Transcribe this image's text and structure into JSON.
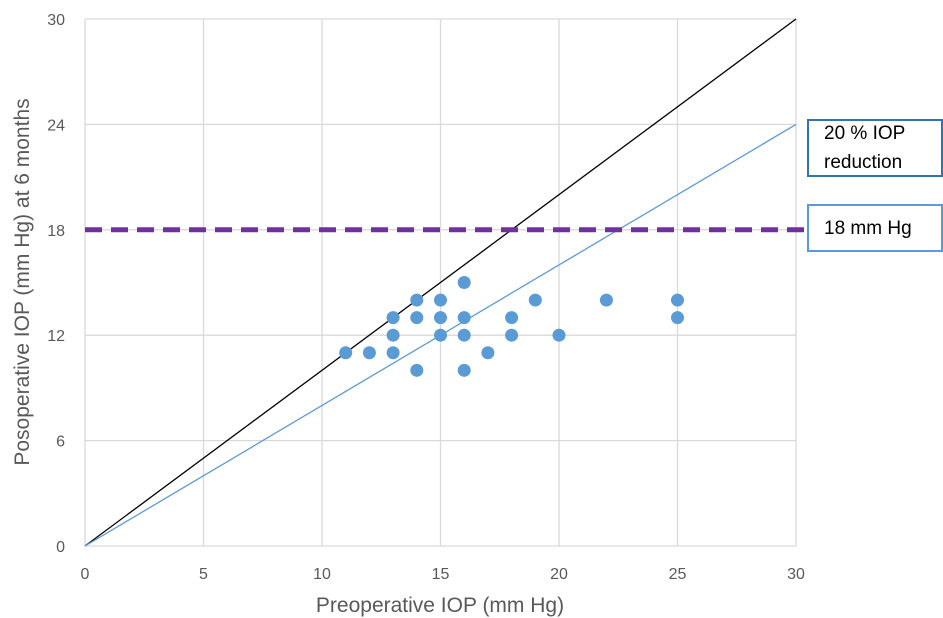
{
  "chart_data": {
    "type": "scatter",
    "xlabel": "Preoperative IOP (mm Hg)",
    "ylabel": "Posoperative IOP (mm Hg) at 6 months",
    "xlim": [
      0,
      30
    ],
    "ylim": [
      0,
      30
    ],
    "x_ticks": [
      "0",
      "5",
      "10",
      "15",
      "20",
      "25",
      "30"
    ],
    "y_ticks": [
      "0",
      "6",
      "12",
      "18",
      "24",
      "30"
    ],
    "grid": true,
    "points": [
      {
        "x": 11,
        "y": 11
      },
      {
        "x": 12,
        "y": 11
      },
      {
        "x": 13,
        "y": 11
      },
      {
        "x": 13,
        "y": 12
      },
      {
        "x": 13,
        "y": 13
      },
      {
        "x": 14,
        "y": 14
      },
      {
        "x": 14,
        "y": 13
      },
      {
        "x": 14,
        "y": 10
      },
      {
        "x": 15,
        "y": 14
      },
      {
        "x": 15,
        "y": 13
      },
      {
        "x": 15,
        "y": 12
      },
      {
        "x": 16,
        "y": 15
      },
      {
        "x": 16,
        "y": 13
      },
      {
        "x": 16,
        "y": 12
      },
      {
        "x": 16,
        "y": 10
      },
      {
        "x": 17,
        "y": 11
      },
      {
        "x": 18,
        "y": 13
      },
      {
        "x": 18,
        "y": 12
      },
      {
        "x": 19,
        "y": 14
      },
      {
        "x": 20,
        "y": 12
      },
      {
        "x": 22,
        "y": 14
      },
      {
        "x": 25,
        "y": 14
      },
      {
        "x": 25,
        "y": 13
      }
    ],
    "reference_lines": [
      {
        "type": "identity",
        "slope": 1.0,
        "color": "#000000"
      },
      {
        "type": "reduction",
        "slope": 0.8,
        "color": "#5b9bd5",
        "label": "20 % IOP\nreduction"
      },
      {
        "type": "threshold",
        "y": 18,
        "color": "#7030a0",
        "style": "dashed",
        "label": "18 mm Hg"
      }
    ],
    "point_color": "#5b9bd5"
  }
}
